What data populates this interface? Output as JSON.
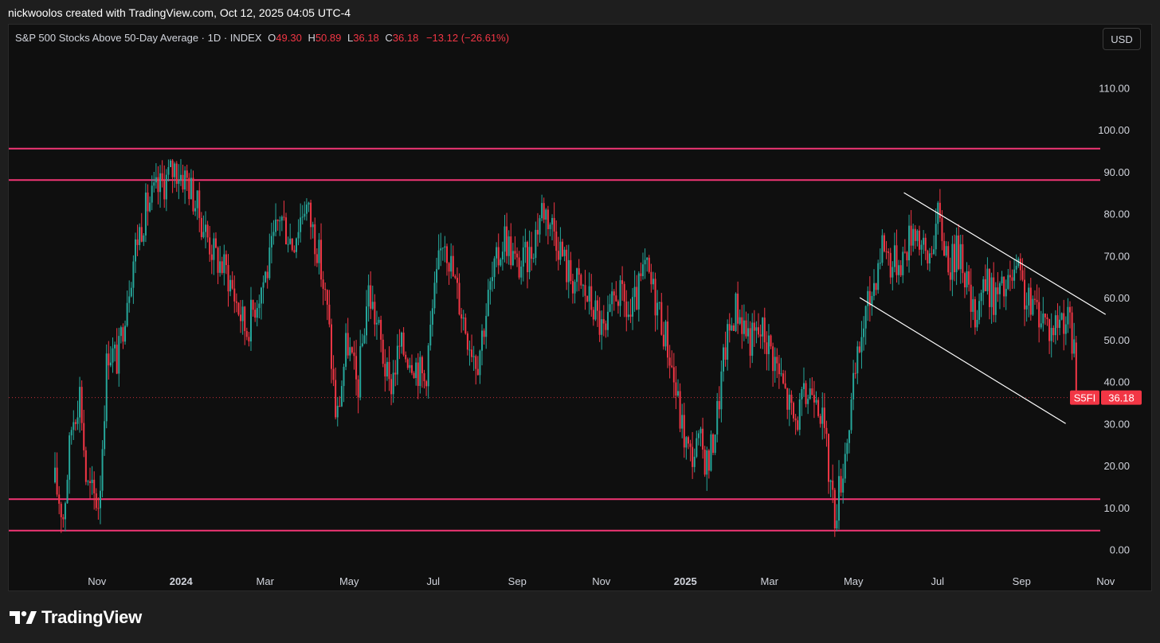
{
  "header": {
    "credit": "nickwoolos created with TradingView.com, Oct 12, 2025 04:05 UTC-4"
  },
  "legend": {
    "title": "S&P 500 Stocks Above 50-Day Average · 1D · INDEX",
    "o_label": "O",
    "o_value": "49.30",
    "h_label": "H",
    "h_value": "50.89",
    "l_label": "L",
    "l_value": "36.18",
    "c_label": "C",
    "c_value": "36.18",
    "change": "−13.12 (−26.61%)"
  },
  "currency_button": "USD",
  "price_tag": {
    "symbol": "S5FI",
    "value": "36.18"
  },
  "footer": {
    "brand": "TradingView"
  },
  "colors": {
    "up": "#26a69a",
    "down": "#f23645",
    "level_line": "#f23675",
    "channel": "#ffffff",
    "background": "#0f0f0f"
  },
  "chart_data": {
    "type": "candlestick",
    "title": "S&P 500 Stocks Above 50-Day Average · 1D · INDEX",
    "ylim": [
      0,
      115
    ],
    "yticks": [
      "0.00",
      "10.00",
      "20.00",
      "30.00",
      "40.00",
      "50.00",
      "60.00",
      "70.00",
      "80.00",
      "90.00",
      "100.00",
      "110.00"
    ],
    "xlabels": [
      {
        "t": 1.0,
        "label": "Nov"
      },
      {
        "t": 3.0,
        "label": "2024",
        "bold": true
      },
      {
        "t": 5.0,
        "label": "Mar"
      },
      {
        "t": 7.0,
        "label": "May"
      },
      {
        "t": 9.0,
        "label": "Jul"
      },
      {
        "t": 11.0,
        "label": "Sep"
      },
      {
        "t": 13.0,
        "label": "Nov"
      },
      {
        "t": 15.0,
        "label": "2025",
        "bold": true
      },
      {
        "t": 17.0,
        "label": "Mar"
      },
      {
        "t": 19.0,
        "label": "May"
      },
      {
        "t": 21.0,
        "label": "Jul"
      },
      {
        "t": 23.0,
        "label": "Sep"
      },
      {
        "t": 25.0,
        "label": "Nov"
      }
    ],
    "horizontal_levels": [
      95.5,
      88,
      12,
      4.5
    ],
    "channel": {
      "upper": [
        [
          20.2,
          85
        ],
        [
          25.0,
          56
        ]
      ],
      "lower": [
        [
          19.15,
          60
        ],
        [
          24.05,
          30
        ]
      ]
    },
    "last_price": 36.18,
    "path_points": [
      [
        0.0,
        16
      ],
      [
        0.2,
        8
      ],
      [
        0.4,
        30
      ],
      [
        0.6,
        38
      ],
      [
        0.75,
        15
      ],
      [
        1.05,
        11
      ],
      [
        1.25,
        48
      ],
      [
        1.5,
        45
      ],
      [
        1.7,
        60
      ],
      [
        1.95,
        74
      ],
      [
        2.2,
        82
      ],
      [
        2.55,
        87
      ],
      [
        2.85,
        91
      ],
      [
        3.15,
        88
      ],
      [
        3.5,
        78
      ],
      [
        3.8,
        70
      ],
      [
        4.1,
        66
      ],
      [
        4.35,
        58
      ],
      [
        4.55,
        52
      ],
      [
        4.8,
        60
      ],
      [
        5.1,
        68
      ],
      [
        5.35,
        80
      ],
      [
        5.65,
        73
      ],
      [
        5.95,
        83
      ],
      [
        6.25,
        72
      ],
      [
        6.5,
        55
      ],
      [
        6.7,
        30
      ],
      [
        6.95,
        50
      ],
      [
        7.2,
        38
      ],
      [
        7.45,
        62
      ],
      [
        7.7,
        52
      ],
      [
        7.95,
        38
      ],
      [
        8.2,
        48
      ],
      [
        8.5,
        46
      ],
      [
        8.8,
        40
      ],
      [
        9.0,
        58
      ],
      [
        9.25,
        76
      ],
      [
        9.5,
        64
      ],
      [
        9.8,
        52
      ],
      [
        10.05,
        45
      ],
      [
        10.35,
        62
      ],
      [
        10.7,
        75
      ],
      [
        11.0,
        67
      ],
      [
        11.3,
        70
      ],
      [
        11.6,
        82
      ],
      [
        11.9,
        76
      ],
      [
        12.2,
        66
      ],
      [
        12.55,
        62
      ],
      [
        12.8,
        58
      ],
      [
        13.1,
        50
      ],
      [
        13.35,
        62
      ],
      [
        13.7,
        55
      ],
      [
        14.05,
        67
      ],
      [
        14.35,
        58
      ],
      [
        14.6,
        48
      ],
      [
        14.9,
        30
      ],
      [
        15.1,
        22
      ],
      [
        15.35,
        25
      ],
      [
        15.55,
        20
      ],
      [
        15.75,
        32
      ],
      [
        15.95,
        48
      ],
      [
        16.2,
        58
      ],
      [
        16.55,
        50
      ],
      [
        16.85,
        52
      ],
      [
        17.1,
        46
      ],
      [
        17.35,
        38
      ],
      [
        17.6,
        30
      ],
      [
        17.85,
        36
      ],
      [
        18.1,
        40
      ],
      [
        18.3,
        28
      ],
      [
        18.55,
        8
      ],
      [
        18.75,
        20
      ],
      [
        19.0,
        38
      ],
      [
        19.2,
        52
      ],
      [
        19.45,
        62
      ],
      [
        19.7,
        74
      ],
      [
        19.9,
        68
      ],
      [
        20.2,
        70
      ],
      [
        20.45,
        78
      ],
      [
        20.75,
        68
      ],
      [
        21.0,
        79
      ],
      [
        21.3,
        68
      ],
      [
        21.55,
        72
      ],
      [
        21.85,
        55
      ],
      [
        22.1,
        64
      ],
      [
        22.35,
        60
      ],
      [
        22.65,
        62
      ],
      [
        22.9,
        66
      ],
      [
        23.15,
        58
      ],
      [
        23.45,
        57
      ],
      [
        23.7,
        52
      ],
      [
        23.95,
        56
      ],
      [
        24.1,
        55
      ],
      [
        24.25,
        47
      ],
      [
        24.3,
        36.18
      ]
    ]
  }
}
